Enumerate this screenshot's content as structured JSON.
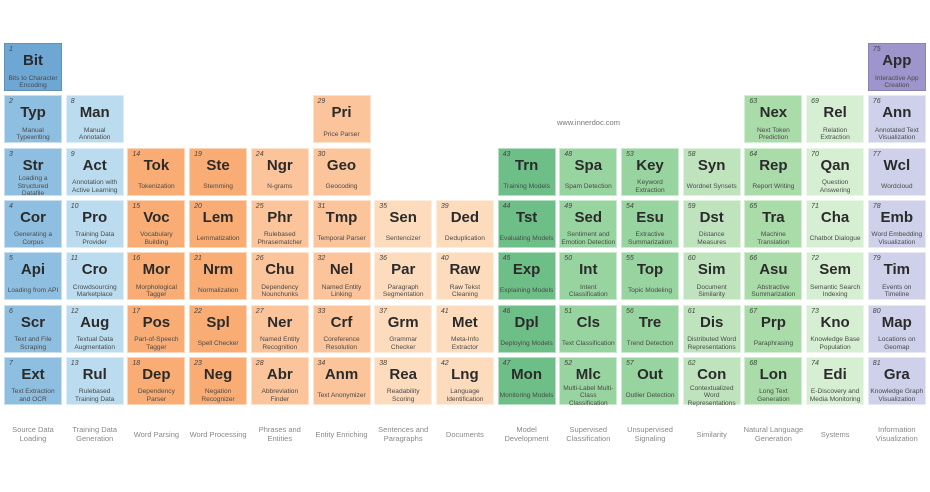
{
  "site": "www.innerdoc.com",
  "columns": [
    {
      "group": "Source Data Loading",
      "color": "#8fbfe0",
      "start_row": 1,
      "elements": [
        {
          "n": "1",
          "sym": "Bit",
          "name": "Bits to Character Encoding",
          "color": "#6ea6d4"
        },
        {
          "n": "2",
          "sym": "Typ",
          "name": "Manual Typewriting"
        },
        {
          "n": "3",
          "sym": "Str",
          "name": "Loading a Structured Datafile"
        },
        {
          "n": "4",
          "sym": "Cor",
          "name": "Generating a Corpus"
        },
        {
          "n": "5",
          "sym": "Api",
          "name": "Loading from API"
        },
        {
          "n": "6",
          "sym": "Scr",
          "name": "Text and File Scraping"
        },
        {
          "n": "7",
          "sym": "Ext",
          "name": "Text Extraction and OCR"
        }
      ]
    },
    {
      "group": "Training Data Generation",
      "color": "#badcee",
      "start_row": 2,
      "elements": [
        {
          "n": "8",
          "sym": "Man",
          "name": "Manual Annotation"
        },
        {
          "n": "9",
          "sym": "Act",
          "name": "Annotation with Active Learning"
        },
        {
          "n": "10",
          "sym": "Pro",
          "name": "Training Data Provider"
        },
        {
          "n": "11",
          "sym": "Cro",
          "name": "Crowdsourcing Marketplace"
        },
        {
          "n": "12",
          "sym": "Aug",
          "name": "Textual Data Augmentation"
        },
        {
          "n": "13",
          "sym": "Rul",
          "name": "Rulebased Training Data"
        }
      ]
    },
    {
      "group": "Word Parsing",
      "color": "#f9ad74",
      "start_row": 3,
      "elements": [
        {
          "n": "14",
          "sym": "Tok",
          "name": "Tokenization"
        },
        {
          "n": "15",
          "sym": "Voc",
          "name": "Vocabulary Building"
        },
        {
          "n": "16",
          "sym": "Mor",
          "name": "Morphological Tagger"
        },
        {
          "n": "17",
          "sym": "Pos",
          "name": "Part-of-Speech Tagger"
        },
        {
          "n": "18",
          "sym": "Dep",
          "name": "Dependency Parser"
        }
      ]
    },
    {
      "group": "Word Processing",
      "color": "#f9ad74",
      "start_row": 3,
      "elements": [
        {
          "n": "19",
          "sym": "Ste",
          "name": "Stemming"
        },
        {
          "n": "20",
          "sym": "Lem",
          "name": "Lemmatization"
        },
        {
          "n": "21",
          "sym": "Nrm",
          "name": "Normalization"
        },
        {
          "n": "22",
          "sym": "Spl",
          "name": "Spell Checker"
        },
        {
          "n": "23",
          "sym": "Neg",
          "name": "Negation Recognizer"
        }
      ]
    },
    {
      "group": "Phrases and Entities",
      "color": "#fcc49a",
      "start_row": 3,
      "elements": [
        {
          "n": "24",
          "sym": "Ngr",
          "name": "N-grams"
        },
        {
          "n": "25",
          "sym": "Phr",
          "name": "Rulebased Phrasematcher"
        },
        {
          "n": "26",
          "sym": "Chu",
          "name": "Dependency Nounchunks"
        },
        {
          "n": "27",
          "sym": "Ner",
          "name": "Named Entity Recognition"
        },
        {
          "n": "28",
          "sym": "Abr",
          "name": "Abbreviation Finder"
        }
      ]
    },
    {
      "group": "Entity Enriching",
      "color": "#fcc49a",
      "start_row": 2,
      "elements": [
        {
          "n": "29",
          "sym": "Pri",
          "name": "Price Parser"
        },
        {
          "n": "30",
          "sym": "Geo",
          "name": "Geocoding"
        },
        {
          "n": "31",
          "sym": "Tmp",
          "name": "Temporal Parser"
        },
        {
          "n": "32",
          "sym": "Nel",
          "name": "Named Entity Linking"
        },
        {
          "n": "33",
          "sym": "Crf",
          "name": "Coreference Resolution"
        },
        {
          "n": "34",
          "sym": "Anm",
          "name": "Text Anonymizer"
        }
      ]
    },
    {
      "group": "Sentences and Paragraphs",
      "color": "#fddcbe",
      "start_row": 4,
      "elements": [
        {
          "n": "35",
          "sym": "Sen",
          "name": "Sentencizer"
        },
        {
          "n": "36",
          "sym": "Par",
          "name": "Paragraph Segmentation"
        },
        {
          "n": "37",
          "sym": "Grm",
          "name": "Grammar Checker"
        },
        {
          "n": "38",
          "sym": "Rea",
          "name": "Readability Scoring"
        }
      ]
    },
    {
      "group": "Documents",
      "color": "#fddcbe",
      "start_row": 4,
      "elements": [
        {
          "n": "39",
          "sym": "Ded",
          "name": "Deduplication"
        },
        {
          "n": "40",
          "sym": "Raw",
          "name": "Raw Tekst Cleaning"
        },
        {
          "n": "41",
          "sym": "Met",
          "name": "Meta-Info Extractor"
        },
        {
          "n": "42",
          "sym": "Lng",
          "name": "Language Identification"
        }
      ]
    },
    {
      "group": "Model Development",
      "color": "#6dbf87",
      "start_row": 3,
      "elements": [
        {
          "n": "43",
          "sym": "Trn",
          "name": "Training Models"
        },
        {
          "n": "44",
          "sym": "Tst",
          "name": "Evaluating Models"
        },
        {
          "n": "45",
          "sym": "Exp",
          "name": "Explaining Models"
        },
        {
          "n": "46",
          "sym": "Dpl",
          "name": "Deploying Models"
        },
        {
          "n": "47",
          "sym": "Mon",
          "name": "Monitoring Models"
        }
      ]
    },
    {
      "group": "Supervised Classification",
      "color": "#98d49f",
      "start_row": 3,
      "elements": [
        {
          "n": "48",
          "sym": "Spa",
          "name": "Spam Detection"
        },
        {
          "n": "49",
          "sym": "Sed",
          "name": "Sentiment and Emotion Detection"
        },
        {
          "n": "50",
          "sym": "Int",
          "name": "Intent Classification"
        },
        {
          "n": "51",
          "sym": "Cls",
          "name": "Text Classification"
        },
        {
          "n": "52",
          "sym": "Mlc",
          "name": "Multi-Label Multi-Class Classification"
        }
      ]
    },
    {
      "group": "Unsupervised Signaling",
      "color": "#98d49f",
      "start_row": 3,
      "elements": [
        {
          "n": "53",
          "sym": "Key",
          "name": "Keyword Extraction"
        },
        {
          "n": "54",
          "sym": "Esu",
          "name": "Extractive Summarization"
        },
        {
          "n": "55",
          "sym": "Top",
          "name": "Topic Modeling"
        },
        {
          "n": "56",
          "sym": "Tre",
          "name": "Trend Detection"
        },
        {
          "n": "57",
          "sym": "Out",
          "name": "Outlier Detection"
        }
      ]
    },
    {
      "group": "Similarity",
      "color": "#bfe4bd",
      "start_row": 3,
      "elements": [
        {
          "n": "58",
          "sym": "Syn",
          "name": "Wordnet Synsets"
        },
        {
          "n": "59",
          "sym": "Dst",
          "name": "Distance Measures"
        },
        {
          "n": "60",
          "sym": "Sim",
          "name": "Document Similarity"
        },
        {
          "n": "61",
          "sym": "Dis",
          "name": "Distributed Word Representations"
        },
        {
          "n": "62",
          "sym": "Con",
          "name": "Contextualized Word Representations"
        }
      ]
    },
    {
      "group": "Natural Language Generation",
      "color": "#a9dca8",
      "start_row": 2,
      "elements": [
        {
          "n": "63",
          "sym": "Nex",
          "name": "Next Token Prediction"
        },
        {
          "n": "64",
          "sym": "Rep",
          "name": "Report Writing"
        },
        {
          "n": "65",
          "sym": "Tra",
          "name": "Machine Translation"
        },
        {
          "n": "66",
          "sym": "Asu",
          "name": "Abstractive Summarization"
        },
        {
          "n": "67",
          "sym": "Prp",
          "name": "Paraphrasing"
        },
        {
          "n": "68",
          "sym": "Lon",
          "name": "Long Text Generation"
        }
      ]
    },
    {
      "group": "Systems",
      "color": "#d6efd3",
      "start_row": 2,
      "elements": [
        {
          "n": "69",
          "sym": "Rel",
          "name": "Relation Extraction"
        },
        {
          "n": "70",
          "sym": "Qan",
          "name": "Question Answering"
        },
        {
          "n": "71",
          "sym": "Cha",
          "name": "Chatbot Dialogue"
        },
        {
          "n": "72",
          "sym": "Sem",
          "name": "Semantic Search Indexing"
        },
        {
          "n": "73",
          "sym": "Kno",
          "name": "Knowledge Base Population"
        },
        {
          "n": "74",
          "sym": "Edi",
          "name": "E-Discovery and Media Monitoring"
        }
      ]
    },
    {
      "group": "Information Visualization",
      "color": "#ced1e9",
      "start_row": 1,
      "elements": [
        {
          "n": "75",
          "sym": "App",
          "name": "Interactive App Creation",
          "color": "#9e95cd"
        },
        {
          "n": "76",
          "sym": "Ann",
          "name": "Annotated Text Visualization"
        },
        {
          "n": "77",
          "sym": "Wcl",
          "name": "Wordcloud"
        },
        {
          "n": "78",
          "sym": "Emb",
          "name": "Word Embedding Visualization"
        },
        {
          "n": "79",
          "sym": "Tim",
          "name": "Events on Timeline"
        },
        {
          "n": "80",
          "sym": "Map",
          "name": "Locations on Geomap"
        },
        {
          "n": "81",
          "sym": "Gra",
          "name": "Knowledge Graph Visualization"
        }
      ]
    }
  ]
}
